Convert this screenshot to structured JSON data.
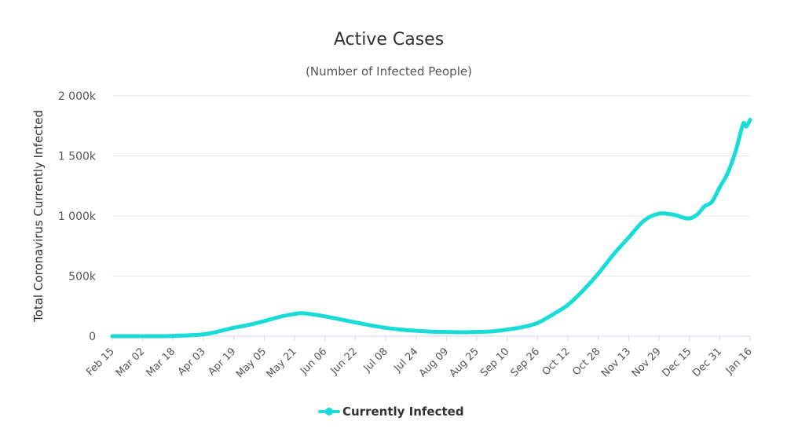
{
  "chart_data": {
    "type": "line",
    "title": "Active Cases",
    "subtitle": "(Number of Infected People)",
    "ylabel": "Total Coronavirus Currently Infected",
    "xlabel": "",
    "ylim": [
      0,
      2000000
    ],
    "y_ticks": [
      {
        "value": 0,
        "label": "0"
      },
      {
        "value": 500000,
        "label": "500k"
      },
      {
        "value": 1000000,
        "label": "1 000k"
      },
      {
        "value": 1500000,
        "label": "1 500k"
      },
      {
        "value": 2000000,
        "label": "2 000k"
      }
    ],
    "x_ticks": [
      "Feb 15",
      "Mar 02",
      "Mar 18",
      "Apr 03",
      "Apr 19",
      "May 05",
      "May 21",
      "Jun 06",
      "Jun 22",
      "Jul 08",
      "Jul 24",
      "Aug 09",
      "Aug 25",
      "Sep 10",
      "Sep 26",
      "Oct 12",
      "Oct 28",
      "Nov 13",
      "Nov 29",
      "Dec 15",
      "Dec 31",
      "Jan 16"
    ],
    "grid": true,
    "legend_position": "bottom-center",
    "series": [
      {
        "name": "Currently Infected",
        "color": "#19dcd8",
        "points": [
          [
            "Feb 15",
            0
          ],
          [
            "Mar 02",
            0
          ],
          [
            "Mar 18",
            2000
          ],
          [
            "Apr 03",
            15000
          ],
          [
            "Apr 11",
            40000
          ],
          [
            "Apr 19",
            70000
          ],
          [
            "Apr 27",
            95000
          ],
          [
            "May 05",
            125000
          ],
          [
            "May 13",
            160000
          ],
          [
            "May 21",
            185000
          ],
          [
            "May 26",
            190000
          ],
          [
            "Jun 06",
            165000
          ],
          [
            "Jun 14",
            140000
          ],
          [
            "Jun 22",
            115000
          ],
          [
            "Jun 30",
            90000
          ],
          [
            "Jul 08",
            70000
          ],
          [
            "Jul 16",
            55000
          ],
          [
            "Jul 24",
            45000
          ],
          [
            "Aug 01",
            38000
          ],
          [
            "Aug 09",
            35000
          ],
          [
            "Aug 17",
            33000
          ],
          [
            "Aug 25",
            35000
          ],
          [
            "Sep 02",
            40000
          ],
          [
            "Sep 10",
            55000
          ],
          [
            "Sep 18",
            75000
          ],
          [
            "Sep 26",
            110000
          ],
          [
            "Oct 04",
            180000
          ],
          [
            "Oct 12",
            260000
          ],
          [
            "Oct 20",
            380000
          ],
          [
            "Oct 28",
            520000
          ],
          [
            "Nov 05",
            680000
          ],
          [
            "Nov 13",
            820000
          ],
          [
            "Nov 21",
            960000
          ],
          [
            "Nov 29",
            1020000
          ],
          [
            "Dec 07",
            1010000
          ],
          [
            "Dec 11",
            990000
          ],
          [
            "Dec 15",
            980000
          ],
          [
            "Dec 19",
            1010000
          ],
          [
            "Dec 23",
            1080000
          ],
          [
            "Dec 27",
            1120000
          ],
          [
            "Dec 31",
            1240000
          ],
          [
            "Jan 04",
            1350000
          ],
          [
            "Jan 08",
            1520000
          ],
          [
            "Jan 12",
            1750000
          ],
          [
            "Jan 13",
            1770000
          ],
          [
            "Jan 14",
            1745000
          ],
          [
            "Jan 16",
            1800000
          ]
        ]
      }
    ]
  }
}
